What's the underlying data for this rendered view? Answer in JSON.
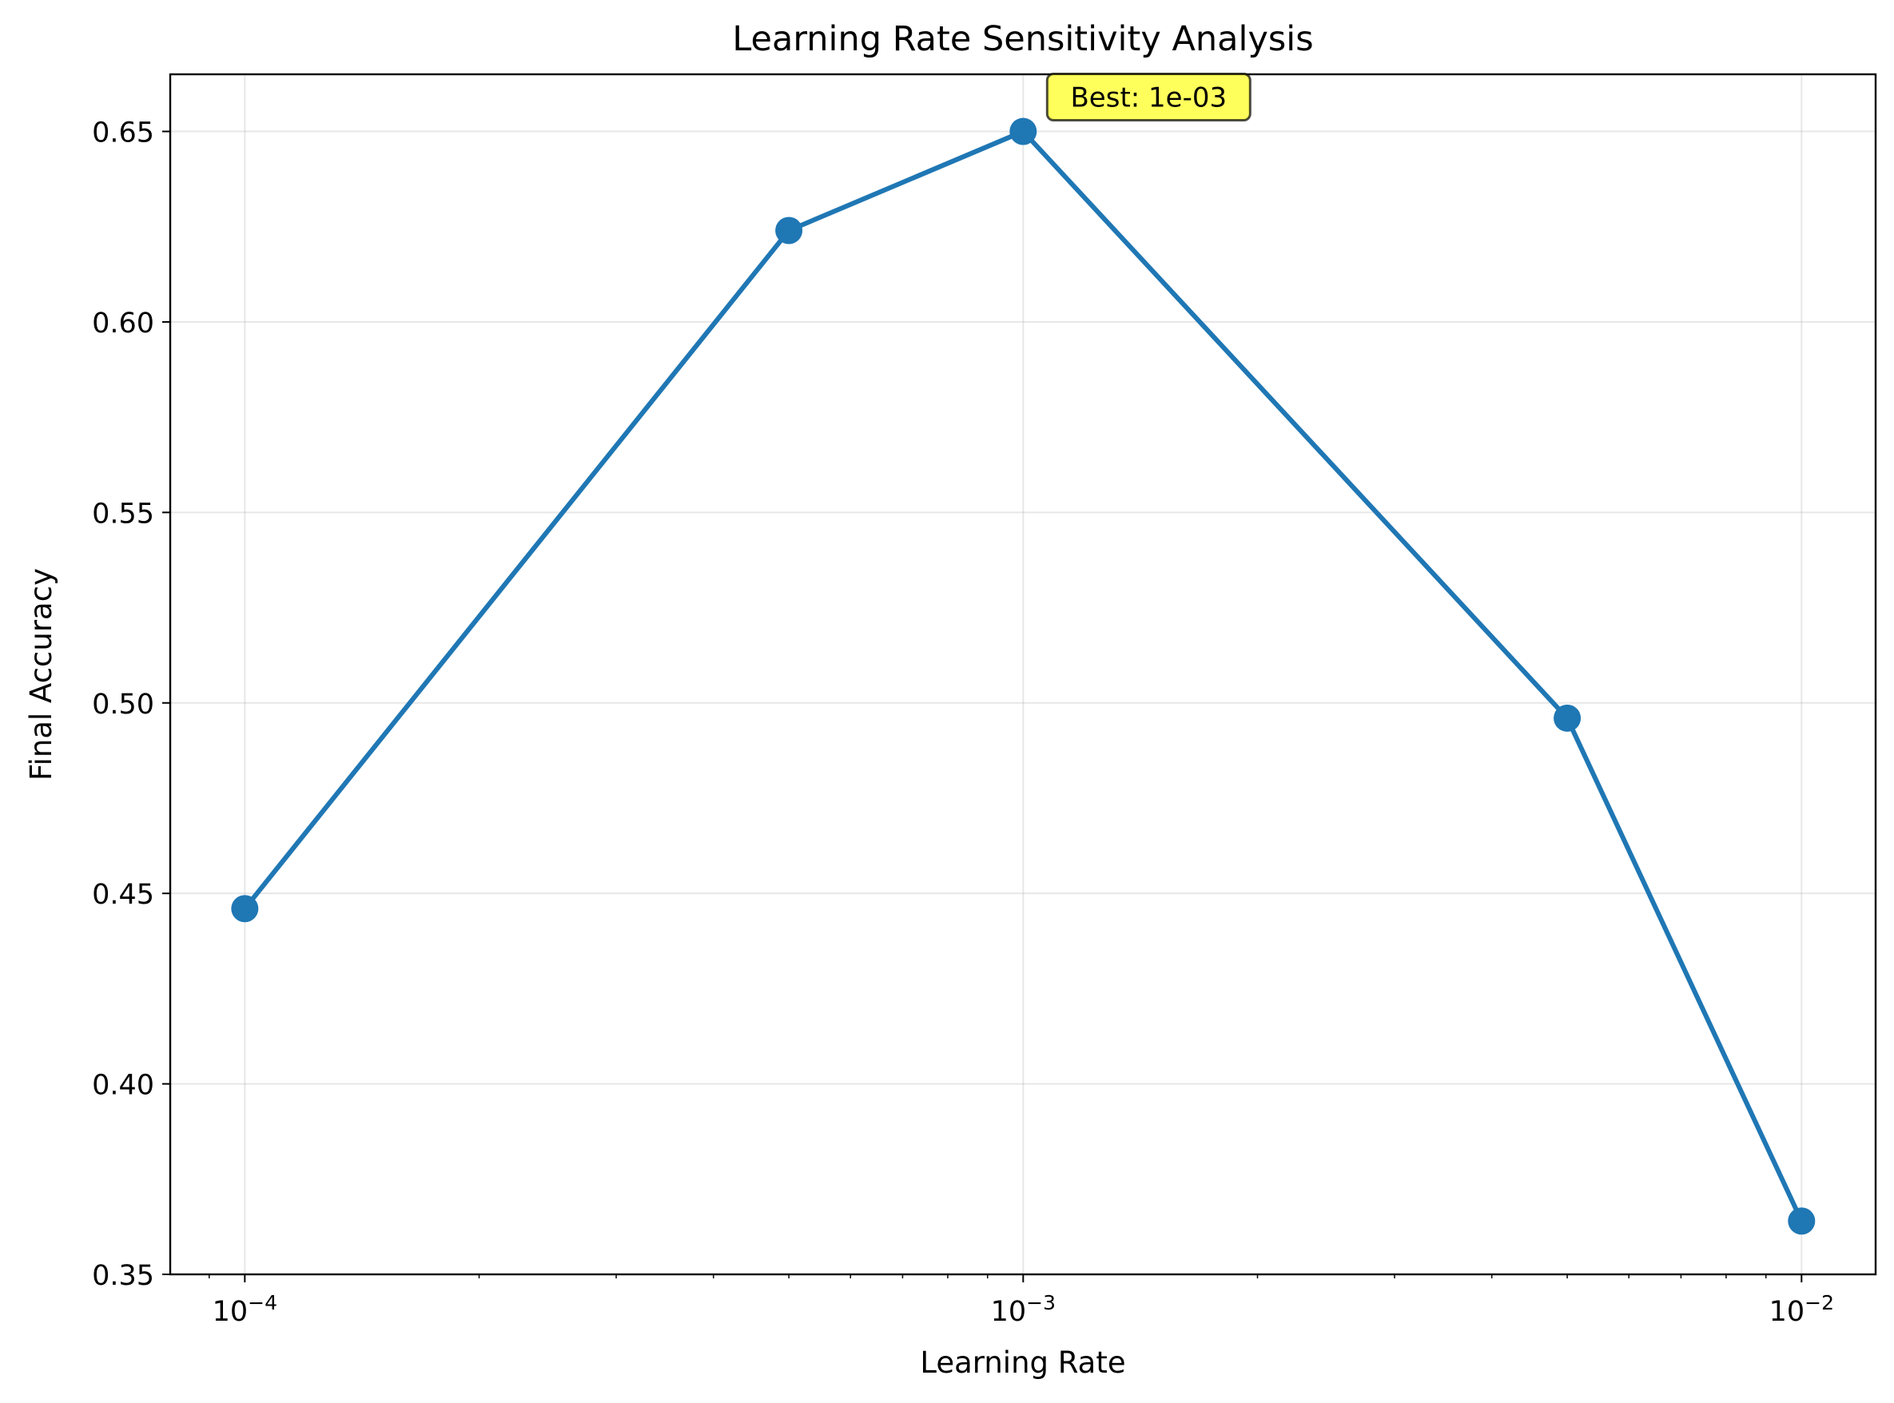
{
  "chart_data": {
    "type": "line",
    "title": "Learning Rate Sensitivity Analysis",
    "xlabel": "Learning Rate",
    "ylabel": "Final Accuracy",
    "xscale": "log",
    "xlim": [
      8.02e-05,
      0.01245
    ],
    "ylim": [
      0.35,
      0.665
    ],
    "grid": true,
    "x_ticks": [
      {
        "value": 0.0001,
        "base": "10",
        "exp": "−4"
      },
      {
        "value": 0.001,
        "base": "10",
        "exp": "−3"
      },
      {
        "value": 0.01,
        "base": "10",
        "exp": "−2"
      }
    ],
    "y_ticks": [
      {
        "value": 0.35,
        "label": "0.35"
      },
      {
        "value": 0.4,
        "label": "0.40"
      },
      {
        "value": 0.45,
        "label": "0.45"
      },
      {
        "value": 0.5,
        "label": "0.50"
      },
      {
        "value": 0.55,
        "label": "0.55"
      },
      {
        "value": 0.6,
        "label": "0.60"
      },
      {
        "value": 0.65,
        "label": "0.65"
      }
    ],
    "series": [
      {
        "color": "#1f77b4",
        "points": [
          {
            "x": 0.0001,
            "y": 0.446
          },
          {
            "x": 0.0005,
            "y": 0.624
          },
          {
            "x": 0.001,
            "y": 0.65
          },
          {
            "x": 0.005,
            "y": 0.496
          },
          {
            "x": 0.01,
            "y": 0.364
          }
        ]
      }
    ],
    "annotations": [
      {
        "text": "Best: 1e-03",
        "x": 0.001,
        "y": 0.65,
        "background": "#ffff33"
      }
    ]
  }
}
